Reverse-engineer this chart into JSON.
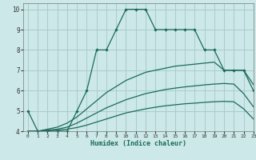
{
  "xlabel": "Humidex (Indice chaleur)",
  "bg_color": "#cce8e8",
  "grid_color": "#aacccc",
  "line_color": "#1a6b5a",
  "xlim": [
    -0.5,
    23
  ],
  "ylim": [
    4,
    10.3
  ],
  "yticks": [
    4,
    5,
    6,
    7,
    8,
    9,
    10
  ],
  "xticks": [
    0,
    1,
    2,
    3,
    4,
    5,
    6,
    7,
    8,
    9,
    10,
    11,
    12,
    13,
    14,
    15,
    16,
    17,
    18,
    19,
    20,
    21,
    22,
    23
  ],
  "line1_x": [
    0,
    1,
    2,
    3,
    4,
    5,
    6,
    7,
    8,
    9,
    10,
    11,
    12,
    13,
    14,
    15,
    16,
    17,
    18,
    19,
    20,
    21,
    22,
    23
  ],
  "line1_y": [
    5,
    4,
    4,
    4,
    4,
    5,
    6,
    8,
    8,
    9,
    10,
    10,
    10,
    9,
    9,
    9,
    9,
    9,
    8,
    8,
    7,
    7,
    7,
    6
  ],
  "line2_x": [
    0,
    1,
    2,
    3,
    4,
    5,
    6,
    7,
    8,
    9,
    10,
    11,
    12,
    13,
    14,
    15,
    16,
    17,
    18,
    19,
    20,
    21,
    22,
    23
  ],
  "line2_y": [
    4.0,
    4.0,
    4.1,
    4.2,
    4.4,
    4.7,
    5.1,
    5.5,
    5.9,
    6.2,
    6.5,
    6.7,
    6.9,
    7.0,
    7.1,
    7.2,
    7.25,
    7.3,
    7.35,
    7.4,
    7.0,
    7.0,
    7.0,
    6.3
  ],
  "line3_x": [
    0,
    1,
    2,
    3,
    4,
    5,
    6,
    7,
    8,
    9,
    10,
    11,
    12,
    13,
    14,
    15,
    16,
    17,
    18,
    19,
    20,
    21,
    22,
    23
  ],
  "line3_y": [
    4.0,
    4.0,
    4.05,
    4.1,
    4.2,
    4.4,
    4.65,
    4.9,
    5.15,
    5.35,
    5.55,
    5.7,
    5.85,
    5.95,
    6.05,
    6.12,
    6.18,
    6.23,
    6.28,
    6.32,
    6.35,
    6.32,
    5.85,
    5.2
  ],
  "line4_x": [
    0,
    1,
    2,
    3,
    4,
    5,
    6,
    7,
    8,
    9,
    10,
    11,
    12,
    13,
    14,
    15,
    16,
    17,
    18,
    19,
    20,
    21,
    22,
    23
  ],
  "line4_y": [
    4.0,
    4.0,
    4.02,
    4.05,
    4.1,
    4.18,
    4.3,
    4.45,
    4.6,
    4.75,
    4.9,
    5.0,
    5.1,
    5.18,
    5.25,
    5.3,
    5.35,
    5.38,
    5.42,
    5.45,
    5.47,
    5.45,
    5.1,
    4.6
  ]
}
